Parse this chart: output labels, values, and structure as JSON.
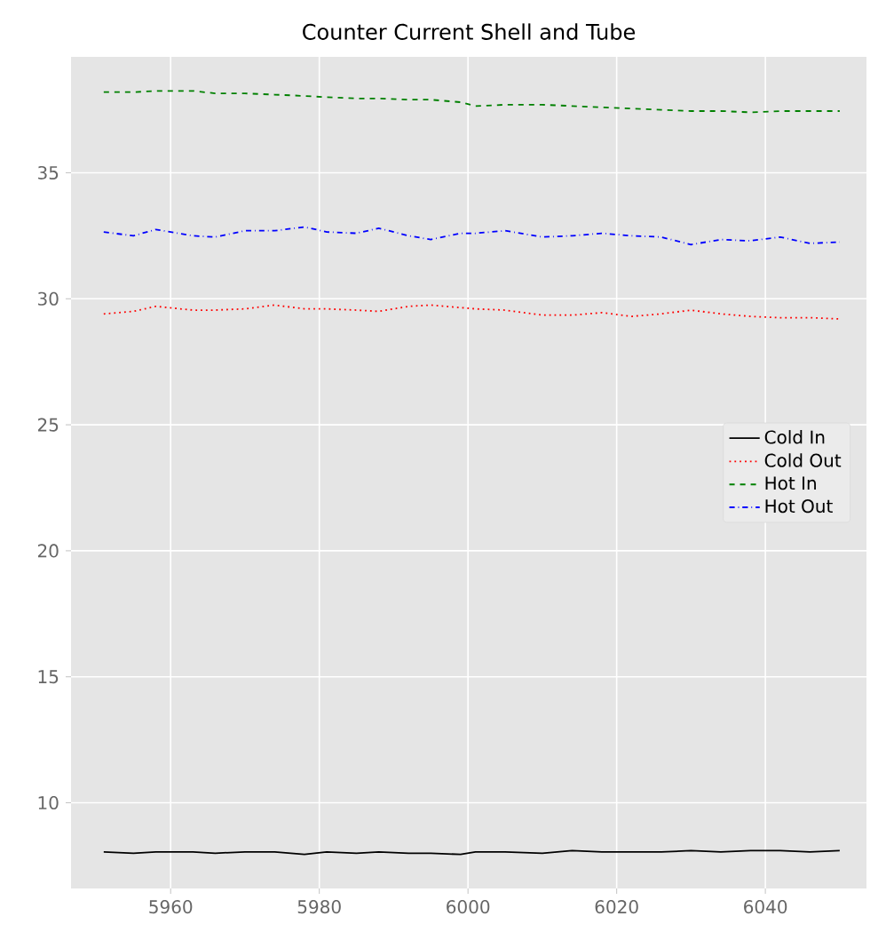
{
  "chart_data": {
    "type": "line",
    "title": "Counter Current Shell and Tube",
    "xlim": [
      5946.6,
      6053.6
    ],
    "ylim": [
      6.6,
      39.6
    ],
    "xticks": [
      5960,
      5980,
      6000,
      6020,
      6040
    ],
    "yticks": [
      10,
      15,
      20,
      25,
      30,
      35
    ],
    "grid": true,
    "legend": "right",
    "x": [
      5951,
      5955,
      5958,
      5963,
      5966,
      5970,
      5974,
      5978,
      5981,
      5985,
      5988,
      5992,
      5995,
      5999,
      6001,
      6005,
      6010,
      6014,
      6018,
      6022,
      6026,
      6030,
      6034,
      6038,
      6042,
      6046,
      6050
    ],
    "series": [
      {
        "name": "Cold In",
        "color": "#000000",
        "line_style": "solid",
        "values": [
          8.05,
          8.0,
          8.05,
          8.05,
          8.0,
          8.05,
          8.05,
          7.95,
          8.05,
          8.0,
          8.05,
          8.0,
          8.0,
          7.95,
          8.05,
          8.05,
          8.0,
          8.1,
          8.05,
          8.05,
          8.05,
          8.1,
          8.05,
          8.1,
          8.1,
          8.05,
          8.1
        ]
      },
      {
        "name": "Cold Out",
        "color": "#ff0000",
        "line_style": "dotted",
        "values": [
          29.4,
          29.5,
          29.7,
          29.55,
          29.55,
          29.6,
          29.75,
          29.6,
          29.6,
          29.55,
          29.5,
          29.7,
          29.75,
          29.65,
          29.6,
          29.55,
          29.35,
          29.35,
          29.45,
          29.3,
          29.4,
          29.55,
          29.4,
          29.3,
          29.25,
          29.25,
          29.2
        ]
      },
      {
        "name": "Hot In",
        "color": "#008000",
        "line_style": "dashed",
        "values": [
          38.2,
          38.2,
          38.25,
          38.25,
          38.15,
          38.15,
          38.1,
          38.05,
          38.0,
          37.95,
          37.95,
          37.9,
          37.9,
          37.8,
          37.65,
          37.7,
          37.7,
          37.65,
          37.6,
          37.55,
          37.5,
          37.45,
          37.45,
          37.4,
          37.45,
          37.45,
          37.45
        ]
      },
      {
        "name": "Hot Out",
        "color": "#0000ff",
        "line_style": "dashdot",
        "values": [
          32.65,
          32.5,
          32.75,
          32.5,
          32.45,
          32.7,
          32.7,
          32.85,
          32.65,
          32.6,
          32.8,
          32.5,
          32.35,
          32.6,
          32.6,
          32.7,
          32.45,
          32.5,
          32.6,
          32.5,
          32.45,
          32.15,
          32.35,
          32.3,
          32.45,
          32.2,
          32.25
        ]
      }
    ]
  }
}
